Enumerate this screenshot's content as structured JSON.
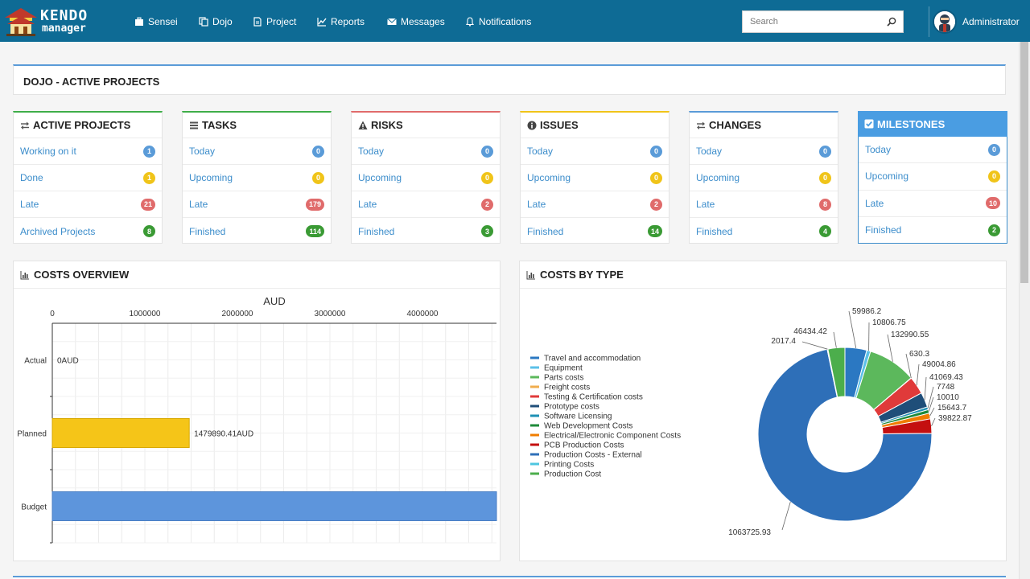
{
  "brand": {
    "line1": "KENDO",
    "line2": "manager"
  },
  "nav": [
    {
      "label": "Sensei",
      "icon": "briefcase-icon"
    },
    {
      "label": "Dojo",
      "icon": "copy-icon"
    },
    {
      "label": "Project",
      "icon": "file-icon"
    },
    {
      "label": "Reports",
      "icon": "line-chart-icon"
    },
    {
      "label": "Messages",
      "icon": "envelope-icon"
    },
    {
      "label": "Notifications",
      "icon": "bell-icon"
    }
  ],
  "search": {
    "placeholder": "Search"
  },
  "user": {
    "name": "Administrator"
  },
  "page": {
    "title": "DOJO - ACTIVE PROJECTS"
  },
  "panels": [
    {
      "title": "ACTIVE PROJECTS",
      "icon": "exchange-icon",
      "accent": "#3fae49",
      "rows": [
        {
          "label": "Working on it",
          "count": "1",
          "color": "#5a9bd8"
        },
        {
          "label": "Done",
          "count": "1",
          "color": "#f0c419"
        },
        {
          "label": "Late",
          "count": "21",
          "color": "#e06b6b"
        },
        {
          "label": "Archived Projects",
          "count": "8",
          "color": "#3a9a34"
        }
      ]
    },
    {
      "title": "TASKS",
      "icon": "tasks-icon",
      "accent": "#3fae49",
      "rows": [
        {
          "label": "Today",
          "count": "0",
          "color": "#5a9bd8"
        },
        {
          "label": "Upcoming",
          "count": "0",
          "color": "#f0c419"
        },
        {
          "label": "Late",
          "count": "179",
          "color": "#e06b6b"
        },
        {
          "label": "Finished",
          "count": "114",
          "color": "#3a9a34"
        }
      ]
    },
    {
      "title": "RISKS",
      "icon": "warning-icon",
      "accent": "#e06b6b",
      "rows": [
        {
          "label": "Today",
          "count": "0",
          "color": "#5a9bd8"
        },
        {
          "label": "Upcoming",
          "count": "0",
          "color": "#f0c419"
        },
        {
          "label": "Late",
          "count": "2",
          "color": "#e06b6b"
        },
        {
          "label": "Finished",
          "count": "3",
          "color": "#3a9a34"
        }
      ]
    },
    {
      "title": "ISSUES",
      "icon": "info-icon",
      "accent": "#f0c419",
      "rows": [
        {
          "label": "Today",
          "count": "0",
          "color": "#5a9bd8"
        },
        {
          "label": "Upcoming",
          "count": "0",
          "color": "#f0c419"
        },
        {
          "label": "Late",
          "count": "2",
          "color": "#e06b6b"
        },
        {
          "label": "Finished",
          "count": "14",
          "color": "#3a9a34"
        }
      ]
    },
    {
      "title": "CHANGES",
      "icon": "exchange-icon",
      "accent": "#5a9bd8",
      "rows": [
        {
          "label": "Today",
          "count": "0",
          "color": "#5a9bd8"
        },
        {
          "label": "Upcoming",
          "count": "0",
          "color": "#f0c419"
        },
        {
          "label": "Late",
          "count": "8",
          "color": "#e06b6b"
        },
        {
          "label": "Finished",
          "count": "4",
          "color": "#3a9a34"
        }
      ]
    },
    {
      "title": "MILESTONES",
      "icon": "check-square-icon",
      "accent": "#3c8dcb",
      "active": true,
      "rows": [
        {
          "label": "Today",
          "count": "0",
          "color": "#5a9bd8"
        },
        {
          "label": "Upcoming",
          "count": "0",
          "color": "#f0c419"
        },
        {
          "label": "Late",
          "count": "10",
          "color": "#e06b6b"
        },
        {
          "label": "Finished",
          "count": "2",
          "color": "#3a9a34"
        }
      ]
    }
  ],
  "costs_overview": {
    "title": "COSTS OVERVIEW",
    "icon": "bar-chart-icon"
  },
  "costs_by_type": {
    "title": "COSTS BY TYPE",
    "icon": "bar-chart-icon"
  },
  "chart_data": [
    {
      "type": "bar",
      "orientation": "horizontal",
      "title": "AUD",
      "categories": [
        "Actual",
        "Planned",
        "Budget"
      ],
      "values": [
        0,
        1479890.41,
        4800000
      ],
      "value_labels": [
        "0AUD",
        "1479890.41AUD",
        ""
      ],
      "colors": [
        "#3c8dcb",
        "#f5c518",
        "#5d95dc"
      ],
      "xlim": [
        0,
        4800000
      ],
      "ticks": [
        0,
        1000000,
        2000000,
        3000000,
        4000000
      ],
      "tick_labels": [
        "0",
        "1000000",
        "2000000",
        "3000000",
        "4000000"
      ],
      "grid": true
    },
    {
      "type": "pie",
      "donut": true,
      "legend_position": "left",
      "series": [
        {
          "name": "Travel and accommodation",
          "color": "#2b78c2"
        },
        {
          "name": "Equipment",
          "color": "#5bc0e8"
        },
        {
          "name": "Parts costs",
          "color": "#5cb85c"
        },
        {
          "name": "Freight costs",
          "color": "#f0ad4e"
        },
        {
          "name": "Testing & Certification costs",
          "color": "#e03a3a"
        },
        {
          "name": "Prototype costs",
          "color": "#1f4e79"
        },
        {
          "name": "Software Licensing",
          "color": "#1e90b4"
        },
        {
          "name": "Web Development Costs",
          "color": "#1e8a3a"
        },
        {
          "name": "Electrical/Electronic Component Costs",
          "color": "#f07d00"
        },
        {
          "name": "PCB Production Costs",
          "color": "#c40f0f"
        },
        {
          "name": "Production Costs - External",
          "color": "#2e6fb8"
        },
        {
          "name": "Printing Costs",
          "color": "#4ec6e0"
        },
        {
          "name": "Production Cost",
          "color": "#4cae4c"
        }
      ],
      "slices": [
        {
          "value": 59986.2,
          "label": "59986.2",
          "color": "#2b78c2"
        },
        {
          "value": 10806.75,
          "label": "10806.75",
          "color": "#5bc0e8"
        },
        {
          "value": 132990.55,
          "label": "132990.55",
          "color": "#5cb85c"
        },
        {
          "value": 630.3,
          "label": "630.3",
          "color": "#f0ad4e"
        },
        {
          "value": 49004.86,
          "label": "49004.86",
          "color": "#e03a3a"
        },
        {
          "value": 41069.43,
          "label": "41069.43",
          "color": "#1f4e79"
        },
        {
          "value": 7748,
          "label": "7748",
          "color": "#1e90b4"
        },
        {
          "value": 10010,
          "label": "10010",
          "color": "#1e8a3a"
        },
        {
          "value": 15643.7,
          "label": "15643.7",
          "color": "#f07d00"
        },
        {
          "value": 39822.87,
          "label": "39822.87",
          "color": "#c40f0f"
        },
        {
          "value": 1063725.93,
          "label": "1063725.93",
          "color": "#2e6fb8"
        },
        {
          "value": 2017.4,
          "label": "2017.4",
          "color": "#4ec6e0"
        },
        {
          "value": 46434.42,
          "label": "46434.42",
          "color": "#4cae4c"
        }
      ]
    }
  ]
}
